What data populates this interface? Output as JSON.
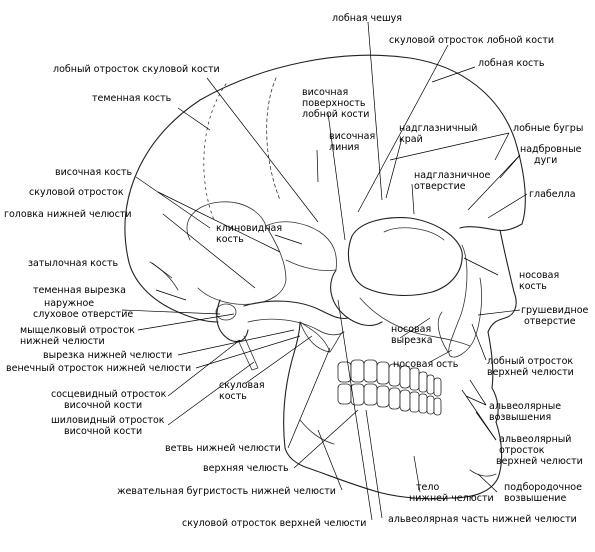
{
  "labels": {
    "frontal_squama": "лобная чешуя",
    "zygomatic_process_frontal": "скуловой отросток лобной кости",
    "frontal_process_zygomatic": "лобный отросток скуловой кости",
    "frontal_bone": "лобная кость",
    "parietal_bone": "теменная кость",
    "temporal_surface_1": "височная",
    "temporal_surface_2": "поверхность",
    "temporal_surface_3": "лобной кости",
    "supraorbital_margin_1": "надглазничный",
    "supraorbital_margin_2": "край",
    "frontal_tubers": "лобные бугры",
    "temporal_line_1": "височная",
    "temporal_line_2": "линия",
    "superciliary_arches_1": "надбровные",
    "superciliary_arches_2": "дуги",
    "supraorbital_foramen_1": "надглазничное",
    "supraorbital_foramen_2": "отверстие",
    "temporal_bone": "височная кость",
    "glabella": "глабелла",
    "zygomatic_process": "скуловой отросток",
    "mandible_head": "головка нижней челюсти",
    "sphenoid_bone_1": "клиновидная",
    "sphenoid_bone_2": "кость",
    "occipital_bone": "затылочная кость",
    "nasal_bone_1": "носовая",
    "nasal_bone_2": "кость",
    "parietal_notch": "теменная вырезка",
    "ext_acoustic_1": "наружное",
    "ext_acoustic_2": "слуховое отверстие",
    "piriform_aperture_1": "грушевидное",
    "piriform_aperture_2": "отверстие",
    "condylar_process_1": "мыщелковый отросток",
    "condylar_process_2": "нижней челюсти",
    "nasal_notch_1": "носовая",
    "nasal_notch_2": "вырезка",
    "mandibular_notch": "вырезка нижней челюсти",
    "coronoid_process": "венечный отросток нижней челюсти",
    "nasal_spine": "носовая ость",
    "frontal_process_maxilla_1": "лобный отросток",
    "frontal_process_maxilla_2": "верхней челюсти",
    "zygomatic_bone_1": "скуловая",
    "zygomatic_bone_2": "кость",
    "mastoid_process_1": "сосцевидный отросток",
    "mastoid_process_2": "височной кости",
    "alveolar_yokes_1": "альвеолярные",
    "alveolar_yokes_2": "возвышения",
    "styloid_process_1": "шиловидный отросток",
    "styloid_process_2": "височной кости",
    "alveolar_process_1": "альвеолярный",
    "alveolar_process_2": "отросток",
    "alveolar_process_3": "верхней челюсти",
    "mandible_ramus": "ветвь нижней челюсти",
    "maxilla": "верхняя челюсть",
    "mandible_body_1": "тело",
    "mandible_body_2": "нижней челюсти",
    "mental_protuberance_1": "подбородочное",
    "mental_protuberance_2": "возвышение",
    "masseteric_tuberosity": "жевательная бугристость нижней челюсти",
    "zygomatic_process_maxilla": "скуловой отросток верхней челюсти",
    "alveolar_part_mandible": "альвеолярная часть нижней челюсти"
  }
}
